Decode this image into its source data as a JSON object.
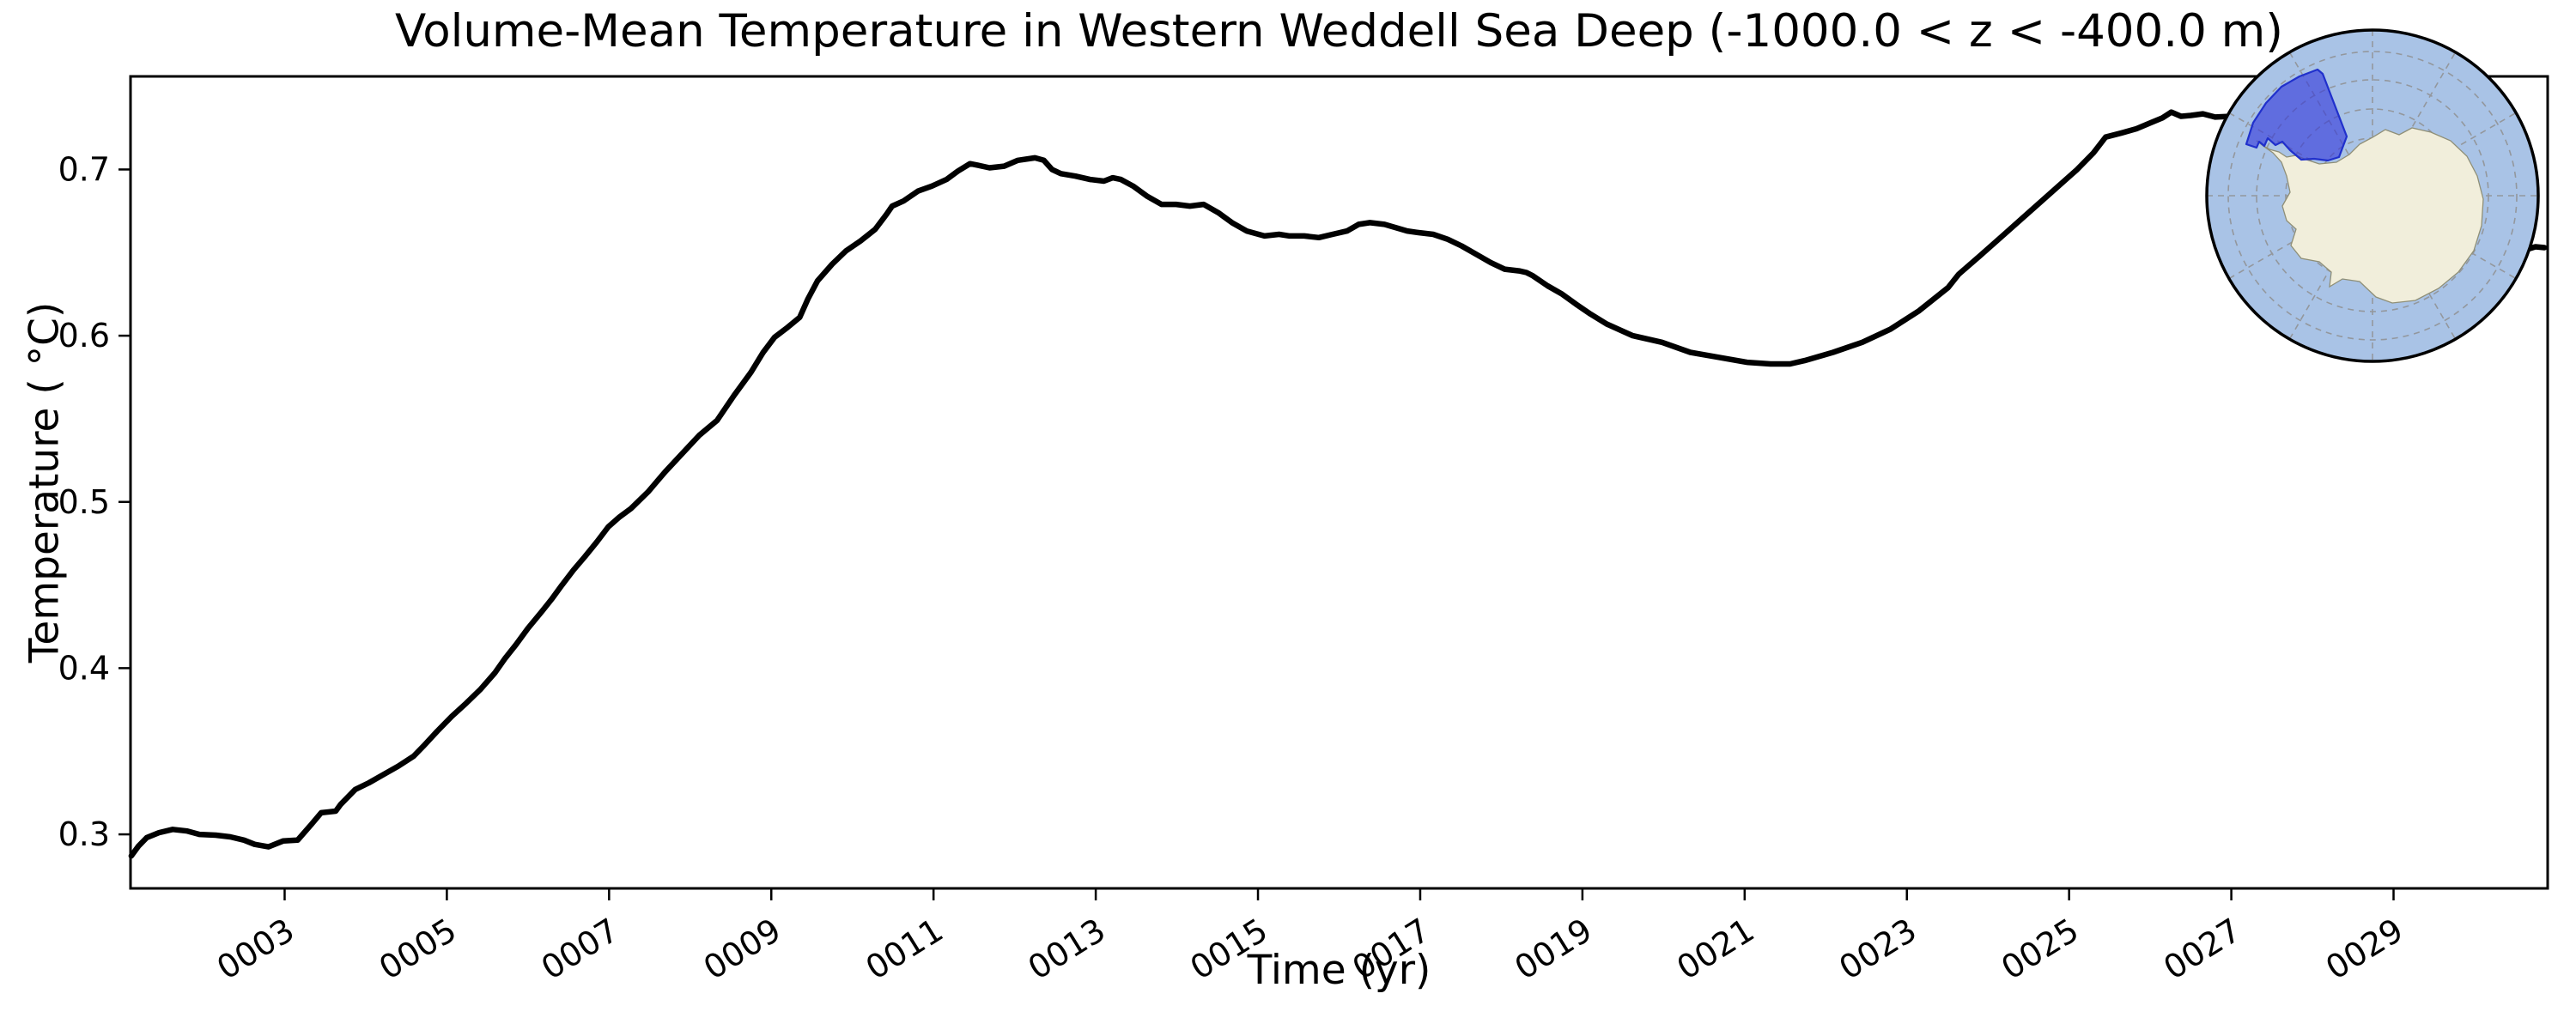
{
  "chart_data": {
    "type": "line",
    "title": "Volume-Mean Temperature in Western Weddell Sea Deep (-1000.0 < z < -400.0 m)",
    "xlabel": "Time (yr)",
    "ylabel": "Temperature ( °C)",
    "grid": false,
    "legend": "none",
    "xlim": [
      1.1,
      30.9
    ],
    "ylim": [
      0.2675,
      0.756
    ],
    "line_color": "#000000",
    "line_width": 6.5,
    "xticks": {
      "values": [
        3,
        5,
        7,
        9,
        11,
        13,
        15,
        17,
        19,
        21,
        23,
        25,
        27,
        29
      ],
      "labels": [
        "0003",
        "0005",
        "0007",
        "0009",
        "0011",
        "0013",
        "0015",
        "0017",
        "0019",
        "0021",
        "0023",
        "0025",
        "0027",
        "0029"
      ],
      "rotation_deg": -32
    },
    "yticks": {
      "values": [
        0.3,
        0.4,
        0.5,
        0.6,
        0.7
      ],
      "labels": [
        "0.3",
        "0.4",
        "0.5",
        "0.6",
        "0.7"
      ]
    },
    "series": [
      {
        "name": "volume-mean temperature",
        "points": [
          [
            1.11,
            0.287
          ],
          [
            1.2,
            0.293
          ],
          [
            1.3,
            0.298
          ],
          [
            1.45,
            0.301
          ],
          [
            1.62,
            0.303
          ],
          [
            1.8,
            0.302
          ],
          [
            1.95,
            0.3
          ],
          [
            2.15,
            0.2995
          ],
          [
            2.33,
            0.2985
          ],
          [
            2.5,
            0.2965
          ],
          [
            2.63,
            0.294
          ],
          [
            2.8,
            0.2925
          ],
          [
            2.98,
            0.296
          ],
          [
            3.16,
            0.2965
          ],
          [
            3.33,
            0.306
          ],
          [
            3.45,
            0.313
          ],
          [
            3.63,
            0.314
          ],
          [
            3.69,
            0.318
          ],
          [
            3.87,
            0.327
          ],
          [
            4.04,
            0.331
          ],
          [
            4.22,
            0.336
          ],
          [
            4.4,
            0.341
          ],
          [
            4.59,
            0.347
          ],
          [
            4.71,
            0.353
          ],
          [
            4.88,
            0.362
          ],
          [
            5.06,
            0.371
          ],
          [
            5.24,
            0.379
          ],
          [
            5.41,
            0.387
          ],
          [
            5.59,
            0.397
          ],
          [
            5.72,
            0.406
          ],
          [
            5.85,
            0.414
          ],
          [
            6.0,
            0.424
          ],
          [
            6.17,
            0.434
          ],
          [
            6.3,
            0.442
          ],
          [
            6.42,
            0.45
          ],
          [
            6.56,
            0.459
          ],
          [
            6.7,
            0.467
          ],
          [
            6.85,
            0.476
          ],
          [
            6.99,
            0.485
          ],
          [
            7.13,
            0.491
          ],
          [
            7.27,
            0.496
          ],
          [
            7.48,
            0.506
          ],
          [
            7.69,
            0.518
          ],
          [
            7.9,
            0.529
          ],
          [
            8.11,
            0.54
          ],
          [
            8.33,
            0.549
          ],
          [
            8.54,
            0.564
          ],
          [
            8.75,
            0.578
          ],
          [
            8.9,
            0.59
          ],
          [
            9.04,
            0.599
          ],
          [
            9.2,
            0.605
          ],
          [
            9.35,
            0.611
          ],
          [
            9.45,
            0.622
          ],
          [
            9.57,
            0.633
          ],
          [
            9.75,
            0.643
          ],
          [
            9.92,
            0.651
          ],
          [
            10.1,
            0.657
          ],
          [
            10.28,
            0.664
          ],
          [
            10.42,
            0.673
          ],
          [
            10.49,
            0.678
          ],
          [
            10.63,
            0.681
          ],
          [
            10.81,
            0.687
          ],
          [
            10.98,
            0.69
          ],
          [
            11.16,
            0.694
          ],
          [
            11.3,
            0.699
          ],
          [
            11.45,
            0.7035
          ],
          [
            11.55,
            0.7025
          ],
          [
            11.69,
            0.701
          ],
          [
            11.87,
            0.702
          ],
          [
            12.04,
            0.7055
          ],
          [
            12.25,
            0.707
          ],
          [
            12.36,
            0.7055
          ],
          [
            12.46,
            0.7
          ],
          [
            12.57,
            0.6975
          ],
          [
            12.75,
            0.696
          ],
          [
            12.93,
            0.694
          ],
          [
            13.1,
            0.693
          ],
          [
            13.21,
            0.695
          ],
          [
            13.31,
            0.694
          ],
          [
            13.46,
            0.69
          ],
          [
            13.63,
            0.684
          ],
          [
            13.81,
            0.679
          ],
          [
            13.99,
            0.679
          ],
          [
            14.16,
            0.678
          ],
          [
            14.33,
            0.679
          ],
          [
            14.51,
            0.674
          ],
          [
            14.68,
            0.668
          ],
          [
            14.86,
            0.663
          ],
          [
            15.08,
            0.66
          ],
          [
            15.26,
            0.661
          ],
          [
            15.39,
            0.66
          ],
          [
            15.57,
            0.66
          ],
          [
            15.75,
            0.659
          ],
          [
            15.92,
            0.661
          ],
          [
            16.1,
            0.663
          ],
          [
            16.24,
            0.667
          ],
          [
            16.38,
            0.668
          ],
          [
            16.56,
            0.667
          ],
          [
            16.7,
            0.665
          ],
          [
            16.84,
            0.663
          ],
          [
            16.98,
            0.662
          ],
          [
            17.16,
            0.661
          ],
          [
            17.34,
            0.658
          ],
          [
            17.51,
            0.654
          ],
          [
            17.69,
            0.649
          ],
          [
            17.87,
            0.644
          ],
          [
            18.04,
            0.64
          ],
          [
            18.22,
            0.639
          ],
          [
            18.31,
            0.638
          ],
          [
            18.39,
            0.636
          ],
          [
            18.57,
            0.63
          ],
          [
            18.75,
            0.625
          ],
          [
            18.92,
            0.619
          ],
          [
            19.1,
            0.613
          ],
          [
            19.3,
            0.607
          ],
          [
            19.62,
            0.6
          ],
          [
            19.98,
            0.596
          ],
          [
            20.33,
            0.59
          ],
          [
            20.68,
            0.587
          ],
          [
            21.03,
            0.584
          ],
          [
            21.32,
            0.583
          ],
          [
            21.56,
            0.583
          ],
          [
            21.74,
            0.585
          ],
          [
            22.09,
            0.59
          ],
          [
            22.45,
            0.596
          ],
          [
            22.8,
            0.604
          ],
          [
            23.15,
            0.615
          ],
          [
            23.51,
            0.629
          ],
          [
            23.64,
            0.637
          ],
          [
            23.9,
            0.648
          ],
          [
            24.2,
            0.661
          ],
          [
            24.5,
            0.674
          ],
          [
            24.8,
            0.687
          ],
          [
            25.1,
            0.7
          ],
          [
            25.3,
            0.71
          ],
          [
            25.45,
            0.7195
          ],
          [
            25.65,
            0.722
          ],
          [
            25.83,
            0.7245
          ],
          [
            26.0,
            0.728
          ],
          [
            26.15,
            0.731
          ],
          [
            26.26,
            0.7345
          ],
          [
            26.38,
            0.732
          ],
          [
            26.5,
            0.7325
          ],
          [
            26.65,
            0.7335
          ],
          [
            26.8,
            0.7315
          ],
          [
            27.0,
            0.732
          ],
          [
            27.3,
            0.728
          ],
          [
            27.7,
            0.721
          ],
          [
            28.1,
            0.712
          ],
          [
            28.5,
            0.701
          ],
          [
            28.9,
            0.69
          ],
          [
            29.3,
            0.679
          ],
          [
            29.7,
            0.669
          ],
          [
            30.0,
            0.662
          ],
          [
            30.3,
            0.656
          ],
          [
            30.5,
            0.653
          ],
          [
            30.65,
            0.652
          ],
          [
            30.75,
            0.6535
          ],
          [
            30.86,
            0.653
          ]
        ]
      }
    ],
    "inset_map": {
      "description": "South polar stereographic map of Antarctica with highlighted Western Weddell Sea region",
      "ocean_color": "#a9c3e6",
      "land_color": "#f1eedb",
      "coast_color": "#8f8f77",
      "graticule_color": "#909090",
      "region_fill": "#3438da",
      "region_border": "#2030cc",
      "rim_color": "#000000"
    }
  }
}
